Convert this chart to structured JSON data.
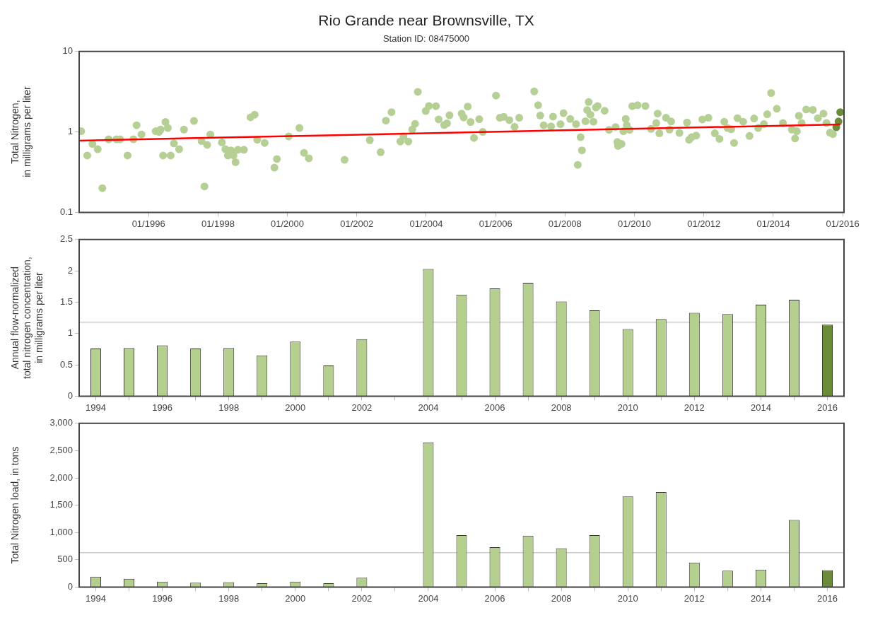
{
  "chart_data": [
    {
      "type": "scatter",
      "title": "Rio Grande near Brownsville, TX",
      "subtitle": "Station ID: 08475000",
      "ylabel": "Total Nitrogen,\nin milligrams per liter",
      "log": true,
      "grid": false,
      "marker": "circle",
      "xlim": [
        "1994-01-01",
        "2016-01-15"
      ],
      "xticks": [
        {
          "value": "1996-01",
          "label": "01/1996"
        },
        {
          "value": "1998-01",
          "label": "01/1998"
        },
        {
          "value": "2000-01",
          "label": "01/2000"
        },
        {
          "value": "2002-01",
          "label": "01/2002"
        },
        {
          "value": "2004-01",
          "label": "01/2004"
        },
        {
          "value": "2006-01",
          "label": "01/2006"
        },
        {
          "value": "2008-01",
          "label": "01/2008"
        },
        {
          "value": "2010-01",
          "label": "01/2010"
        },
        {
          "value": "2012-01",
          "label": "01/2012"
        },
        {
          "value": "2014-01",
          "label": "01/2014"
        },
        {
          "value": "2016-01",
          "label": "01/2016"
        }
      ],
      "ylim": [
        0.1,
        10
      ],
      "yticks": [
        0.1,
        1,
        10
      ],
      "series": [
        {
          "color": "#b5cf94",
          "x": [
            "1994-01-22",
            "1994-03-27",
            "1994-05-21",
            "1994-07-15",
            "1994-09-02",
            "1994-11-07",
            "1995-01-29",
            "1995-03-06",
            "1995-05-25",
            "1995-07-26",
            "1995-08-28",
            "1995-10-19",
            "1996-03-16",
            "1996-04-19",
            "1996-05-07",
            "1996-06-02",
            "1996-06-27",
            "1996-07-22",
            "1996-08-21",
            "1996-09-24",
            "1996-11-18",
            "1997-01-08",
            "1997-04-23",
            "1997-07-12",
            "1997-08-11",
            "1997-09-09",
            "1997-10-12",
            "1998-02-11",
            "1998-03-20",
            "1998-04-15",
            "1998-05-18",
            "1998-06-13",
            "1998-07-05",
            "1998-07-30",
            "1998-10-01",
            "1998-12-09",
            "1999-01-22",
            "1999-02-18",
            "1999-05-07",
            "1999-08-18",
            "1999-09-13",
            "2000-01-15",
            "2000-05-07",
            "2000-06-24",
            "2000-08-14",
            "2001-08-25",
            "2002-05-18",
            "2002-09-09",
            "2002-11-03",
            "2003-01-01",
            "2003-04-04",
            "2003-05-07",
            "2003-06-27",
            "2003-08-07",
            "2003-09-06",
            "2003-10-05",
            "2003-12-27",
            "2004-01-29",
            "2004-04-12",
            "2004-05-11",
            "2004-07-08",
            "2004-08-07",
            "2004-09-02",
            "2005-01-08",
            "2005-01-29",
            "2005-03-13",
            "2005-04-12",
            "2005-05-18",
            "2005-07-12",
            "2005-08-18",
            "2006-01-05",
            "2006-02-14",
            "2006-03-27",
            "2006-05-25",
            "2006-07-19",
            "2006-09-06",
            "2007-02-11",
            "2007-03-24",
            "2007-04-15",
            "2007-05-21",
            "2007-08-07",
            "2007-08-28",
            "2007-11-14",
            "2007-12-16",
            "2008-02-25",
            "2008-04-26",
            "2008-05-14",
            "2008-06-13",
            "2008-06-27",
            "2008-08-03",
            "2008-08-21",
            "2008-09-06",
            "2008-09-24",
            "2008-10-26",
            "2008-11-21",
            "2008-12-09",
            "2009-02-21",
            "2009-04-08",
            "2009-06-16",
            "2009-07-05",
            "2009-07-12",
            "2009-08-18",
            "2009-09-06",
            "2009-10-01",
            "2009-10-12",
            "2009-11-11",
            "2009-12-09",
            "2010-02-03",
            "2010-04-26",
            "2010-06-24",
            "2010-08-18",
            "2010-09-02",
            "2010-09-20",
            "2010-11-29",
            "2011-01-05",
            "2011-01-22",
            "2011-04-19",
            "2011-07-08",
            "2011-07-30",
            "2011-08-25",
            "2011-10-12",
            "2011-12-16",
            "2012-02-18",
            "2012-04-26",
            "2012-06-13",
            "2012-08-03",
            "2012-09-06",
            "2012-10-15",
            "2012-11-14",
            "2012-12-20",
            "2013-02-18",
            "2013-04-26",
            "2013-06-13",
            "2013-07-26",
            "2013-09-24",
            "2013-10-29",
            "2013-12-09",
            "2014-02-07",
            "2014-04-12",
            "2014-07-15",
            "2014-08-18",
            "2014-09-06",
            "2014-09-27",
            "2014-10-26",
            "2014-12-13",
            "2015-02-21",
            "2015-04-15",
            "2015-06-13",
            "2015-07-15",
            "2015-08-21",
            "2015-09-20"
          ],
          "values": [
            1.02,
            0.51,
            0.71,
            0.61,
            0.2,
            0.81,
            0.81,
            0.81,
            0.51,
            0.81,
            1.21,
            0.93,
            1.02,
            1.0,
            1.07,
            0.51,
            1.33,
            1.12,
            0.51,
            0.72,
            0.61,
            1.07,
            1.37,
            0.77,
            0.21,
            0.69,
            0.93,
            0.74,
            0.61,
            0.51,
            0.59,
            0.51,
            0.42,
            0.6,
            0.6,
            1.52,
            1.64,
            0.8,
            0.73,
            0.36,
            0.46,
            0.88,
            1.12,
            0.55,
            0.47,
            0.45,
            0.79,
            0.56,
            1.38,
            1.76,
            0.76,
            0.88,
            0.76,
            1.07,
            1.26,
            3.15,
            1.82,
            2.1,
            2.09,
            1.43,
            1.22,
            1.28,
            1.61,
            1.69,
            1.51,
            2.07,
            1.33,
            0.84,
            1.44,
            1.0,
            2.83,
            1.5,
            1.54,
            1.4,
            1.16,
            1.5,
            3.19,
            2.15,
            1.6,
            1.21,
            1.17,
            1.55,
            1.25,
            1.71,
            1.45,
            1.25,
            0.39,
            0.86,
            0.59,
            1.36,
            1.87,
            2.35,
            1.64,
            1.34,
            2.01,
            2.1,
            1.83,
            1.06,
            1.15,
            0.75,
            0.67,
            0.71,
            1.02,
            1.45,
            1.21,
            1.06,
            2.09,
            2.15,
            2.1,
            1.09,
            1.29,
            1.69,
            0.96,
            1.5,
            1.07,
            1.35,
            0.97,
            1.31,
            0.8,
            0.86,
            0.9,
            1.43,
            1.5,
            0.96,
            0.82,
            1.34,
            1.12,
            1.08,
            0.73,
            1.48,
            1.34,
            0.89,
            1.47,
            1.12,
            1.25,
            1.66,
            3.05,
            1.94,
            1.29,
            1.07,
            0.83,
            1.02,
            1.59,
            1.29,
            1.9,
            1.88,
            1.48,
            1.69,
            1.29,
            0.98,
            0.94
          ]
        },
        {
          "color": "#6b8a3a",
          "x": [
            "2015-10-26",
            "2015-11-18",
            "2015-12-06"
          ],
          "values": [
            1.14,
            1.35,
            1.76
          ]
        },
        {
          "type": "line",
          "color": "#ff0000",
          "marker": "none",
          "x": [
            "1994-01-01",
            "2015-12-06"
          ],
          "values": [
            0.78,
            1.24
          ]
        }
      ]
    },
    {
      "type": "bar",
      "ylabel": "Annual flow-normalized\ntotal nitrogen concentration,\nin milligrams per liter",
      "grid": false,
      "categories": [
        "1994",
        null,
        "1996",
        null,
        "1998",
        null,
        "2000",
        null,
        "2002",
        null,
        "2004",
        null,
        "2006",
        null,
        "2008",
        null,
        "2010",
        null,
        "2012",
        null,
        "2014",
        null,
        "2016"
      ],
      "values": [
        0.76,
        0.77,
        0.81,
        0.76,
        0.77,
        0.65,
        0.87,
        0.49,
        0.91,
        null,
        2.03,
        1.62,
        1.72,
        1.81,
        1.51,
        1.37,
        1.07,
        1.23,
        1.33,
        1.31,
        1.46,
        1.54,
        1.14
      ],
      "colors": [
        "#b5cf8f",
        "#b5cf8f",
        "#b5cf8f",
        "#b5cf8f",
        "#b5cf8f",
        "#b5cf8f",
        "#b5cf8f",
        "#b5cf8f",
        "#b5cf8f",
        "#b5cf8f",
        "#b5cf8f",
        "#b5cf8f",
        "#b5cf8f",
        "#b5cf8f",
        "#b5cf8f",
        "#b5cf8f",
        "#b5cf8f",
        "#b5cf8f",
        "#b5cf8f",
        "#b5cf8f",
        "#b5cf8f",
        "#b5cf8f",
        "#6b8a3a"
      ],
      "ylim": [
        0,
        2.5
      ],
      "yticks": [
        0,
        0.5,
        1,
        1.5,
        2,
        2.5
      ],
      "ref_lines": [
        {
          "axis": "y",
          "value": 1.18,
          "color": "#cccccc"
        }
      ]
    },
    {
      "type": "bar",
      "ylabel": "Total Nitrogen load, in tons",
      "grid": false,
      "categories": [
        "1994",
        null,
        "1996",
        null,
        "1998",
        null,
        "2000",
        null,
        "2002",
        null,
        "2004",
        null,
        "2006",
        null,
        "2008",
        null,
        "2010",
        null,
        "2012",
        null,
        "2014",
        null,
        "2016"
      ],
      "values": [
        190,
        150,
        100,
        80,
        90,
        70,
        100,
        70,
        170,
        null,
        2650,
        950,
        730,
        940,
        710,
        950,
        1660,
        1740,
        450,
        300,
        320,
        1230,
        310
      ],
      "colors": [
        "#b5cf8f",
        "#b5cf8f",
        "#b5cf8f",
        "#b5cf8f",
        "#b5cf8f",
        "#b5cf8f",
        "#b5cf8f",
        "#b5cf8f",
        "#b5cf8f",
        "#b5cf8f",
        "#b5cf8f",
        "#b5cf8f",
        "#b5cf8f",
        "#b5cf8f",
        "#b5cf8f",
        "#b5cf8f",
        "#b5cf8f",
        "#b5cf8f",
        "#b5cf8f",
        "#b5cf8f",
        "#b5cf8f",
        "#b5cf8f",
        "#6b8a3a"
      ],
      "ylim": [
        0,
        3000
      ],
      "yticks": [
        0,
        {
          "value": 500,
          "label": "500"
        },
        {
          "value": 1000,
          "label": "1,000"
        },
        {
          "value": 1500,
          "label": "1,500"
        },
        {
          "value": 2000,
          "label": "2,000"
        },
        {
          "value": 2500,
          "label": "2,500"
        },
        {
          "value": 3000,
          "label": "3,000"
        }
      ],
      "ref_lines": [
        {
          "axis": "y",
          "value": 630,
          "color": "#cccccc"
        }
      ]
    }
  ]
}
